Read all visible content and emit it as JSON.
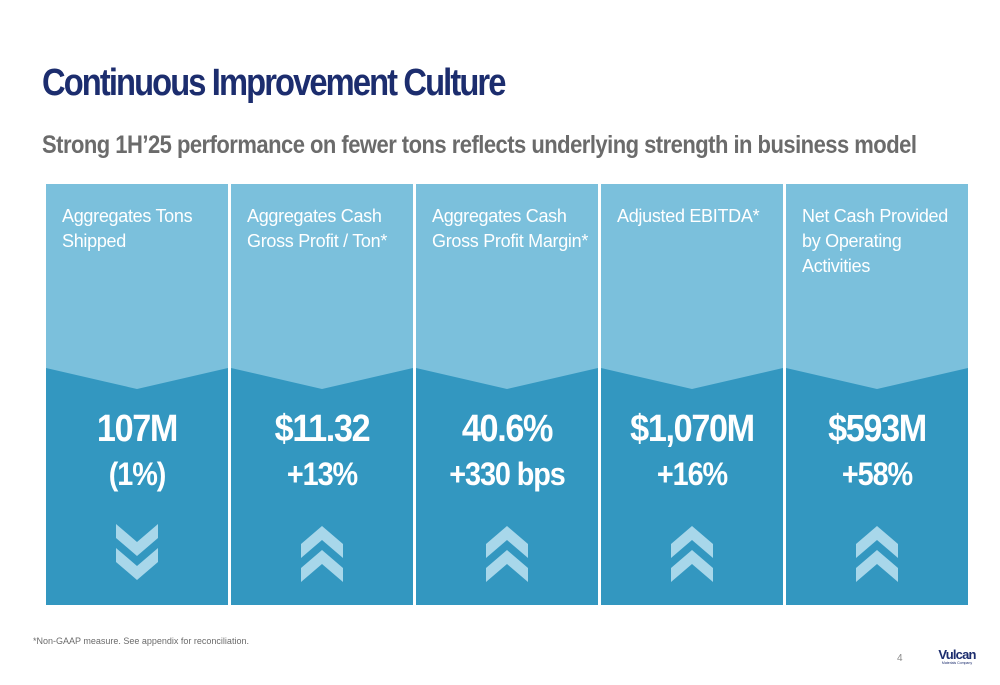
{
  "slide": {
    "title": "Continuous Improvement Culture",
    "subtitle": "Strong 1H’25 performance on fewer tons reflects underlying strength in business model",
    "footnote": "*Non-GAAP measure. See appendix for reconciliation.",
    "page_number": "4"
  },
  "colors": {
    "card_top": "#7bc0dc",
    "card_bottom": "#3397c0",
    "chevron": "#a8d7ea",
    "title": "#1c2d6e",
    "subtitle": "#6b6b6b"
  },
  "cards": [
    {
      "label": "Aggregates Tons Shipped",
      "value": "107M",
      "change": "(1%)",
      "direction": "down",
      "icon": "double-chevron-down-icon"
    },
    {
      "label": "Aggregates Cash Gross Profit / Ton*",
      "value": "$11.32",
      "change": "+13%",
      "direction": "up",
      "icon": "double-chevron-up-icon"
    },
    {
      "label": "Aggregates Cash Gross Profit Margin*",
      "value": "40.6%",
      "change": "+330 bps",
      "direction": "up",
      "icon": "double-chevron-up-icon"
    },
    {
      "label": "Adjusted EBITDA*",
      "value": "$1,070M",
      "change": "+16%",
      "direction": "up",
      "icon": "double-chevron-up-icon"
    },
    {
      "label": "Net Cash Provided by Operating Activities",
      "value": "$593M",
      "change": "+58%",
      "direction": "up",
      "icon": "double-chevron-up-icon"
    }
  ],
  "logo": {
    "name": "Vulcan",
    "tagline": "Materials Company"
  }
}
